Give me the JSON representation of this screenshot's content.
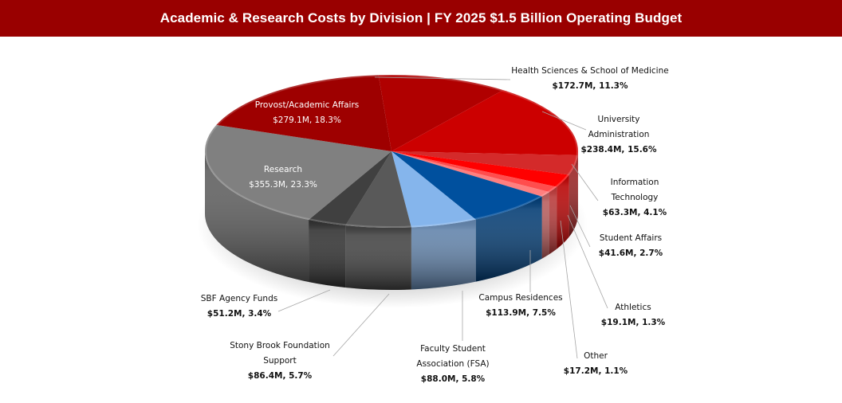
{
  "header": {
    "title": "Academic & Research Costs by Division | FY 2025 $1.5 Billion Operating Budget"
  },
  "colors": {
    "title_bar": "#990000"
  },
  "chart_data": {
    "type": "pie",
    "style": "3d",
    "title": "Academic & Research Costs by Division | FY 2025 $1.5 Billion Operating Budget",
    "total_label": "$1.5 Billion",
    "units": "$M",
    "slices": [
      {
        "name": "Health Sciences & School of Medicine",
        "label_lines": [
          "Health Sciences & School of Medicine"
        ],
        "value": 172.7,
        "percent": 11.3,
        "value_label": "$172.7M, 11.3%",
        "color": "#B00000"
      },
      {
        "name": "University Administration",
        "label_lines": [
          "University",
          "Administration"
        ],
        "value": 238.4,
        "percent": 15.6,
        "value_label": "$238.4M, 15.6%",
        "color": "#CC0000"
      },
      {
        "name": "Information Technology",
        "label_lines": [
          "Information",
          "Technology"
        ],
        "value": 63.3,
        "percent": 4.1,
        "value_label": "$63.3M, 4.1%",
        "color": "#D42A2A"
      },
      {
        "name": "Student Affairs",
        "label_lines": [
          "Student Affairs"
        ],
        "value": 41.6,
        "percent": 2.7,
        "value_label": "$41.6M, 2.7%",
        "color": "#FF0000"
      },
      {
        "name": "Athletics",
        "label_lines": [
          "Athletics"
        ],
        "value": 19.1,
        "percent": 1.3,
        "value_label": "$19.1M, 1.3%",
        "color": "#FF4D4D"
      },
      {
        "name": "Other",
        "label_lines": [
          "Other"
        ],
        "value": 17.2,
        "percent": 1.1,
        "value_label": "$17.2M, 1.1%",
        "color": "#FF7F7F"
      },
      {
        "name": "Campus Residences",
        "label_lines": [
          "Campus Residences"
        ],
        "value": 113.9,
        "percent": 7.5,
        "value_label": "$113.9M, 7.5%",
        "color": "#00509E"
      },
      {
        "name": "Faculty Student Association (FSA)",
        "label_lines": [
          "Faculty Student",
          "Association (FSA)"
        ],
        "value": 88.0,
        "percent": 5.8,
        "value_label": "$88.0M, 5.8%",
        "color": "#85B5EC"
      },
      {
        "name": "Stony Brook Foundation Support",
        "label_lines": [
          "Stony Brook Foundation",
          "Support"
        ],
        "value": 86.4,
        "percent": 5.7,
        "value_label": "$86.4M, 5.7%",
        "color": "#595959"
      },
      {
        "name": "SBF Agency Funds",
        "label_lines": [
          "SBF Agency Funds"
        ],
        "value": 51.2,
        "percent": 3.4,
        "value_label": "$51.2M, 3.4%",
        "color": "#404040"
      },
      {
        "name": "Research",
        "label_lines": [
          "Research"
        ],
        "value": 355.3,
        "percent": 23.3,
        "value_label": "$355.3M, 23.3%",
        "color": "#808080"
      },
      {
        "name": "Provost/Academic Affairs",
        "label_lines": [
          "Provost/Academic Affairs"
        ],
        "value": 279.1,
        "percent": 18.3,
        "value_label": "$279.1M, 18.3%",
        "color": "#9E0000"
      }
    ],
    "legend": "none",
    "labels": "outside with leader lines (Research and Provost inside)"
  }
}
